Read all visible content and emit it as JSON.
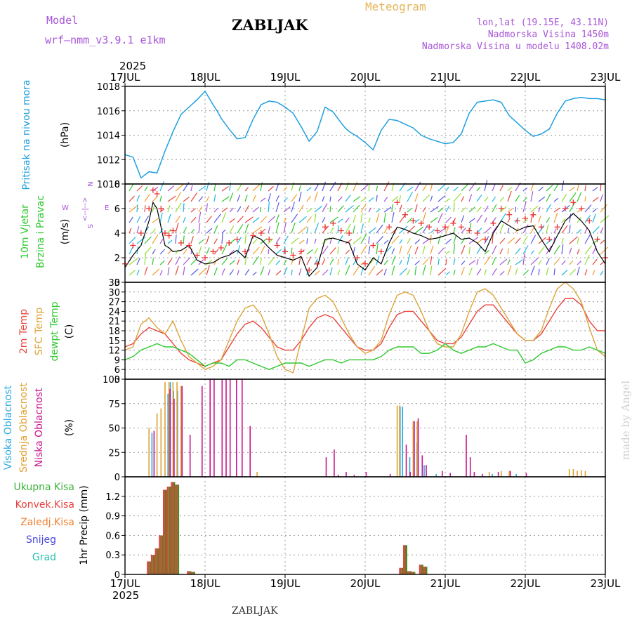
{
  "header": {
    "model_label": "Model",
    "model_name": "wrf—nmm_v3.9.1  e1km",
    "station": "ZABLJAK",
    "meteogram": "Meteogram",
    "location": "lon,lat (19.15E, 43.11N)",
    "altitude": "Nadmorska Visina 1450m",
    "model_altitude": "Nadmorska Visina u modelu 1408.02m",
    "footer_station": "ZABLJAK",
    "credit": "made by Angel",
    "year": "2025"
  },
  "x_axis": {
    "days": [
      "17JUL",
      "18JUL",
      "19JUL",
      "20JUL",
      "21JUL",
      "22JUL",
      "23JUL"
    ],
    "year_label": "2025"
  },
  "colors": {
    "pressure": "#1f9fe0",
    "temp2m": "#e8453c",
    "sfc": "#dca43c",
    "dewpt": "#2ec82e",
    "high_cloud": "#2aa8e0",
    "mid_cloud": "#e0a030",
    "low_cloud": "#c8148c",
    "precip_total": "#3cb43c",
    "precip_conv": "#e84040",
    "precip_strat": "#f08030",
    "snow": "#4848e0",
    "graupel": "#28c0b0",
    "wind_purple": "#a855d8",
    "wind_speed": "#000000",
    "gust": "#e83030"
  },
  "chart_data": [
    {
      "type": "line",
      "panel": "pressure",
      "ylabel_rot": "Pritisak na nivou mora",
      "ylabel": "(hPa)",
      "ylim": [
        1010,
        1018
      ],
      "yticks": [
        "1010",
        "1012",
        "1014",
        "1016",
        "1018"
      ],
      "x": [
        0,
        0.1,
        0.2,
        0.3,
        0.4,
        0.5,
        0.6,
        0.7,
        0.8,
        0.9,
        1.0,
        1.1,
        1.15,
        1.2,
        1.3,
        1.4,
        1.5,
        1.6,
        1.7,
        1.8,
        1.9,
        2.0,
        2.1,
        2.2,
        2.3,
        2.4,
        2.5,
        2.6,
        2.7,
        2.75,
        2.8,
        2.9,
        3.0,
        3.1,
        3.2,
        3.3,
        3.4,
        3.5,
        3.6,
        3.7,
        3.8,
        3.9,
        4.0,
        4.1,
        4.2,
        4.3,
        4.4,
        4.5,
        4.6,
        4.7,
        4.8,
        4.9,
        5.0,
        5.1,
        5.2,
        5.3,
        5.4,
        5.5,
        5.6,
        5.7,
        5.8,
        5.9,
        6.0
      ],
      "series": [
        {
          "values": [
            1012.4,
            1012.2,
            1010.5,
            1011.0,
            1010.9,
            1012.7,
            1014.3,
            1015.7,
            1016.3,
            1016.9,
            1017.6,
            1016.5,
            1016.0,
            1015.4,
            1014.5,
            1013.7,
            1013.8,
            1015.3,
            1016.5,
            1016.8,
            1016.7,
            1016.3,
            1015.8,
            1014.7,
            1013.5,
            1014.3,
            1016.3,
            1015.9,
            1015.0,
            1014.6,
            1014.3,
            1013.9,
            1013.4,
            1012.8,
            1014.4,
            1015.3,
            1015.2,
            1014.9,
            1014.6,
            1014.0,
            1013.7,
            1013.5,
            1013.3,
            1013.4,
            1014.1,
            1015.8,
            1016.7,
            1016.8,
            1016.9,
            1016.7,
            1015.6,
            1015.0,
            1014.4,
            1013.9,
            1014.1,
            1014.5,
            1015.8,
            1016.8,
            1017.0,
            1017.1,
            1017.0,
            1017.0,
            1016.9
          ]
        }
      ]
    },
    {
      "type": "line",
      "panel": "wind",
      "ylabel_rot": [
        "10m Vjetar",
        "Brzina i Pravac"
      ],
      "ylabel": "(m/s)",
      "ylim": [
        0,
        8
      ],
      "yticks": [
        "0",
        "2",
        "4",
        "6",
        "8"
      ],
      "compass": {
        "n": "N",
        "s": "S",
        "e": "E",
        "w": "W",
        "arrows": "<--|-->"
      },
      "x": [
        0,
        0.1,
        0.2,
        0.3,
        0.35,
        0.4,
        0.45,
        0.5,
        0.55,
        0.6,
        0.7,
        0.8,
        0.9,
        1.0,
        1.1,
        1.2,
        1.3,
        1.4,
        1.5,
        1.6,
        1.7,
        1.8,
        1.9,
        2.0,
        2.1,
        2.2,
        2.3,
        2.4,
        2.5,
        2.6,
        2.7,
        2.8,
        2.9,
        3.0,
        3.1,
        3.2,
        3.3,
        3.4,
        3.5,
        3.6,
        3.7,
        3.8,
        3.9,
        4.0,
        4.1,
        4.2,
        4.3,
        4.4,
        4.5,
        4.6,
        4.7,
        4.8,
        4.9,
        5.0,
        5.1,
        5.2,
        5.3,
        5.4,
        5.5,
        5.6,
        5.7,
        5.8,
        5.9,
        6.0
      ],
      "series": [
        {
          "values": [
            1.2,
            2.2,
            3.0,
            5.0,
            6.5,
            6.0,
            4.5,
            3.0,
            2.8,
            2.5,
            2.6,
            3.0,
            1.8,
            1.5,
            1.6,
            2.0,
            2.2,
            2.6,
            2.0,
            3.8,
            3.5,
            2.8,
            2.2,
            2.0,
            1.8,
            2.1,
            0.5,
            1.2,
            3.5,
            3.6,
            3.4,
            3.2,
            1.5,
            1.0,
            2.0,
            1.5,
            3.2,
            4.5,
            4.3,
            4.0,
            3.8,
            3.5,
            3.6,
            3.8,
            4.0,
            3.5,
            3.6,
            3.2,
            2.5,
            4.0,
            5.0,
            4.6,
            4.2,
            4.5,
            4.6,
            3.5,
            2.5,
            3.8,
            5.0,
            5.6,
            5.0,
            4.2,
            2.5,
            1.5
          ]
        },
        {
          "values": [
            1.5,
            3.0,
            4.0,
            6.0,
            7.5,
            7.2,
            6.0,
            4.0,
            3.8,
            4.2,
            3.2,
            3.0,
            2.2,
            2.0,
            2.5,
            2.8,
            3.2,
            3.5,
            2.5,
            3.8,
            4.0,
            3.5,
            3.0,
            2.5,
            2.2,
            2.5,
            1.0,
            1.5,
            4.5,
            4.8,
            4.2,
            4.0,
            2.0,
            1.5,
            3.0,
            2.5,
            4.5,
            6.5,
            5.5,
            5.0,
            4.8,
            4.5,
            4.2,
            4.5,
            4.8,
            4.5,
            4.2,
            4.0,
            3.5,
            4.8,
            6.0,
            5.5,
            5.0,
            5.2,
            5.5,
            4.5,
            3.5,
            4.5,
            6.0,
            6.5,
            6.0,
            5.0,
            3.5,
            2.0
          ]
        }
      ]
    },
    {
      "type": "line",
      "panel": "temperature",
      "ylabel_rot": [
        "2m Temp",
        "SFC Temp",
        "dewpt Temp"
      ],
      "ylabel": "(C)",
      "ylim": [
        3,
        33
      ],
      "yticks": [
        "3",
        "6",
        "9",
        "12",
        "15",
        "18",
        "21",
        "24",
        "27",
        "30",
        "33"
      ],
      "x": [
        0,
        0.1,
        0.2,
        0.3,
        0.4,
        0.5,
        0.6,
        0.7,
        0.8,
        0.9,
        1.0,
        1.1,
        1.2,
        1.3,
        1.4,
        1.5,
        1.6,
        1.7,
        1.8,
        1.9,
        2.0,
        2.1,
        2.2,
        2.3,
        2.4,
        2.5,
        2.6,
        2.7,
        2.8,
        2.9,
        3.0,
        3.1,
        3.2,
        3.3,
        3.4,
        3.5,
        3.6,
        3.7,
        3.8,
        3.9,
        4.0,
        4.1,
        4.2,
        4.3,
        4.4,
        4.5,
        4.6,
        4.7,
        4.8,
        4.9,
        5.0,
        5.1,
        5.2,
        5.3,
        5.4,
        5.5,
        5.6,
        5.7,
        5.8,
        5.9,
        6.0
      ],
      "series": [
        {
          "values": [
            13,
            14,
            17,
            19,
            18,
            17,
            14,
            11,
            9,
            8,
            7,
            8,
            9,
            13,
            17,
            20,
            21,
            19,
            16,
            13,
            12,
            12,
            15,
            19,
            22,
            23,
            22,
            19,
            16,
            13,
            12,
            12,
            14,
            19,
            23,
            24,
            24,
            21,
            18,
            15,
            14,
            14,
            16,
            20,
            24,
            26,
            26,
            23,
            20,
            17,
            15,
            15,
            17,
            21,
            25,
            28,
            28,
            26,
            21,
            18,
            18
          ]
        },
        {
          "values": [
            12,
            13,
            20,
            22,
            19,
            17,
            21,
            15,
            10,
            8,
            6,
            7,
            9,
            15,
            21,
            25,
            26,
            23,
            17,
            10,
            6,
            5,
            15,
            25,
            28,
            29,
            27,
            22,
            17,
            13,
            11,
            12,
            15,
            23,
            29,
            30,
            29,
            24,
            18,
            14,
            13,
            13,
            17,
            24,
            30,
            31,
            29,
            25,
            21,
            17,
            15,
            15,
            18,
            25,
            31,
            33,
            31,
            27,
            19,
            12,
            10
          ]
        },
        {
          "values": [
            9,
            10,
            12,
            13,
            14,
            13,
            13,
            12,
            11,
            9,
            7,
            8,
            8,
            7,
            9,
            9,
            8,
            7,
            6,
            7,
            8,
            8,
            8,
            7,
            8,
            9,
            9,
            8,
            9,
            9,
            9,
            9,
            10,
            12,
            13,
            13,
            13,
            11,
            11,
            12,
            14,
            12,
            11,
            12,
            13,
            13,
            14,
            13,
            12,
            12,
            8,
            9,
            11,
            12,
            13,
            13,
            12,
            12,
            13,
            12,
            11
          ]
        }
      ]
    },
    {
      "type": "bar",
      "panel": "cloud",
      "ylabel_rot": [
        "Visoka Oblacnost",
        "Srednja Oblacnost",
        "Niska Oblacnost"
      ],
      "ylabel": "(%)",
      "ylim": [
        0,
        100
      ],
      "yticks": [
        "0",
        "25",
        "50",
        "75",
        "100"
      ],
      "series": [
        {
          "name": "high",
          "x": [
            0.35,
            0.55,
            0.58,
            0.62,
            0.67,
            0.72,
            3.45,
            3.48,
            3.57,
            3.62,
            3.66,
            3.75,
            3.9,
            4.6,
            4.9
          ],
          "values": [
            45,
            85,
            97,
            88,
            88,
            90,
            72,
            72,
            20,
            42,
            35,
            12,
            3,
            3,
            3
          ]
        },
        {
          "name": "mid",
          "x": [
            0.3,
            0.4,
            0.45,
            0.5,
            0.55,
            0.6,
            0.65,
            0.7,
            1.65,
            3.4,
            3.43,
            3.6,
            3.65,
            4.55,
            4.7,
            4.8,
            5.55,
            5.6,
            5.65,
            5.7,
            5.75
          ],
          "values": [
            50,
            65,
            70,
            97,
            97,
            97,
            97,
            93,
            5,
            73,
            73,
            57,
            57,
            5,
            6,
            6,
            8,
            8,
            6,
            7,
            6
          ]
        },
        {
          "name": "low",
          "x": [
            0.35,
            0.55,
            0.6,
            0.7,
            0.8,
            0.95,
            1.05,
            1.1,
            1.2,
            1.25,
            1.3,
            1.38,
            1.45,
            1.55,
            2.5,
            2.6,
            2.65,
            2.75,
            2.85,
            3.0,
            3.3,
            3.5,
            3.55,
            3.6,
            3.65,
            3.7,
            3.75,
            3.95,
            4.05,
            4.25,
            4.3,
            4.35,
            4.45,
            4.65,
            4.8,
            5.0
          ],
          "values": [
            47,
            90,
            80,
            93,
            43,
            93,
            100,
            100,
            100,
            100,
            100,
            100,
            100,
            52,
            20,
            28,
            2,
            5,
            2,
            5,
            3,
            33,
            5,
            57,
            60,
            22,
            12,
            6,
            4,
            43,
            20,
            5,
            3,
            5,
            6,
            4
          ]
        }
      ]
    },
    {
      "type": "bar",
      "panel": "precip",
      "ylabel": "1hr Precip (mm)",
      "legend": [
        "Ukupna Kisa",
        "Konvek.Kisa",
        "Zaledj.Kisa",
        "Snijeg",
        "Grad"
      ],
      "ylim": [
        0,
        1.5
      ],
      "yticks": [
        "0",
        "0.3",
        "0.6",
        "0.9",
        "1.2"
      ],
      "x": [
        0.3,
        0.35,
        0.4,
        0.45,
        0.5,
        0.55,
        0.6,
        0.65,
        0.8,
        0.85,
        3.45,
        3.5,
        3.55,
        3.6,
        3.7,
        3.75
      ],
      "series": [
        {
          "name": "Ukupna Kisa",
          "values": [
            0.2,
            0.3,
            0.4,
            0.6,
            1.3,
            1.35,
            1.42,
            1.38,
            0.05,
            0.04,
            0.1,
            0.45,
            0.05,
            0.04,
            0.15,
            0.12
          ]
        },
        {
          "name": "Konvek.Kisa",
          "values": [
            0.2,
            0.3,
            0.4,
            0.6,
            1.3,
            1.35,
            1.42,
            1.38,
            0.05,
            0.04,
            0.1,
            0.45,
            0.05,
            0.04,
            0.15,
            0.12
          ]
        }
      ]
    }
  ]
}
